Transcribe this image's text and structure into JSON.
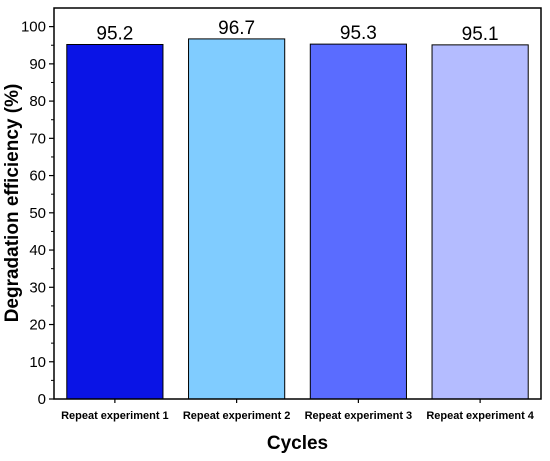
{
  "chart_data": {
    "type": "bar",
    "categories": [
      "Repeat experiment 1",
      "Repeat experiment 2",
      "Repeat experiment 3",
      "Repeat experiment 4"
    ],
    "values": [
      95.2,
      96.7,
      95.3,
      95.1
    ],
    "data_labels": [
      "95.2",
      "96.7",
      "95.3",
      "95.1"
    ],
    "bar_colors": [
      "#0a14e6",
      "#80ccff",
      "#5a6cff",
      "#b4bcff"
    ],
    "title": "",
    "xlabel": "Cycles",
    "ylabel": "Degradation efficiency (%)",
    "ylim": [
      0,
      105
    ],
    "yticks": [
      0,
      10,
      20,
      30,
      40,
      50,
      60,
      70,
      80,
      90,
      100
    ],
    "grid": false,
    "legend": "none"
  }
}
